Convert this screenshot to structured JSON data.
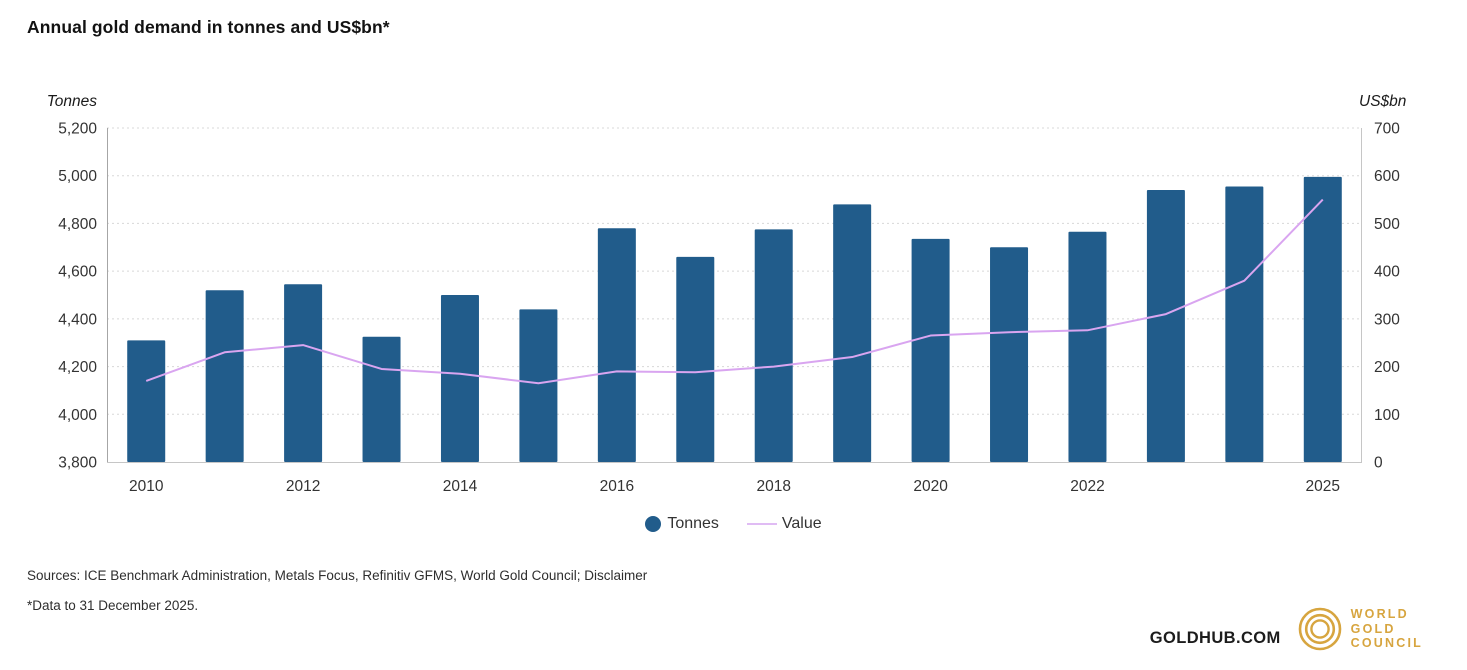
{
  "title": "Annual gold demand in tonnes and US$bn*",
  "chart_data": {
    "type": "bar+line",
    "title": "Annual gold demand in tonnes and US$bn*",
    "categories": [
      "2010",
      "2011",
      "2012",
      "2013",
      "2014",
      "2015",
      "2016",
      "2017",
      "2018",
      "2019",
      "2020",
      "2021",
      "2022",
      "2023",
      "2024",
      "2025"
    ],
    "series": [
      {
        "name": "Tonnes",
        "type": "bar",
        "axis": "left",
        "color": "#215c8b",
        "values": [
          4310,
          4520,
          4545,
          4325,
          4500,
          4440,
          4780,
          4660,
          4775,
          4880,
          4735,
          4700,
          4765,
          4940,
          4955,
          4995
        ]
      },
      {
        "name": "Value",
        "type": "line",
        "axis": "right",
        "color": "#d9a5f0",
        "values": [
          170,
          230,
          245,
          195,
          185,
          165,
          190,
          188,
          200,
          220,
          265,
          272,
          276,
          310,
          380,
          550
        ]
      }
    ],
    "left_axis": {
      "label": "Tonnes",
      "min": 3800,
      "max": 5200,
      "tick_step": 200,
      "tick_values": [
        5200,
        5000,
        4800,
        4600,
        4400,
        4200,
        4000,
        3800
      ],
      "tick_labels": [
        "5,200",
        "5,000",
        "4,800",
        "4,600",
        "4,400",
        "4,200",
        "4,000",
        "3,800"
      ]
    },
    "right_axis": {
      "label": "US$bn",
      "min": 0,
      "max": 700,
      "tick_step": 100,
      "tick_values": [
        700,
        600,
        500,
        400,
        300,
        200,
        100,
        0
      ],
      "tick_labels": [
        "700",
        "600",
        "500",
        "400",
        "300",
        "200",
        "100",
        "0"
      ]
    },
    "x_ticks": [
      {
        "index": 0,
        "label": "2010"
      },
      {
        "index": 2,
        "label": "2012"
      },
      {
        "index": 4,
        "label": "2014"
      },
      {
        "index": 6,
        "label": "2016"
      },
      {
        "index": 8,
        "label": "2018"
      },
      {
        "index": 10,
        "label": "2020"
      },
      {
        "index": 12,
        "label": "2022"
      },
      {
        "index": 15,
        "label": "2025"
      }
    ],
    "legend": [
      {
        "label": "Tonnes",
        "marker": "circle",
        "color": "#215c8b"
      },
      {
        "label": "Value",
        "marker": "line",
        "color": "#e0bcf4"
      }
    ],
    "grid": "horizontal-dashed",
    "legend_position": "bottom-center"
  },
  "footer": {
    "sources": "Sources: ICE Benchmark Administration, Metals Focus, Refinitiv GFMS, World Gold Council; Disclaimer",
    "footnote": "*Data to 31 December 2025.",
    "goldhub": "GOLDHUB.COM",
    "logo_lines": [
      "WORLD",
      "GOLD",
      "COUNCIL"
    ]
  },
  "colors": {
    "bar": "#215c8b",
    "line": "#d9a5f0",
    "gridline": "#d8d8d8",
    "axis": "#a6a6a6",
    "tick_text": "#333333",
    "gold_brand": "#d7a53f"
  }
}
